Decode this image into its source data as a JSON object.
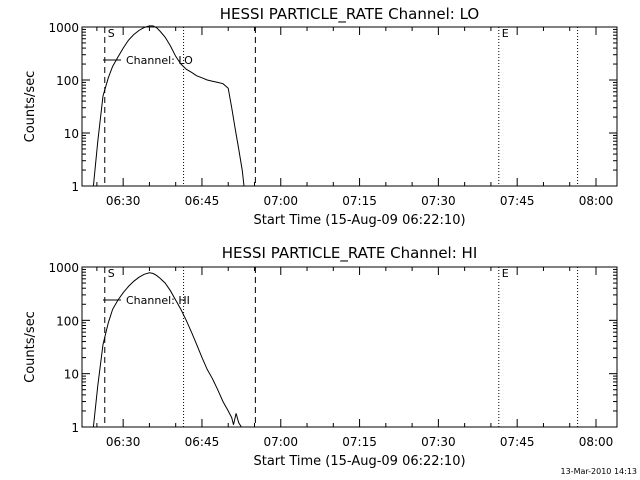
{
  "footer_timestamp": "13-Mar-2010 14:13",
  "chart_data": [
    {
      "type": "line",
      "title": "HESSI PARTICLE_RATE Channel: LO",
      "xlabel": "Start Time (15-Aug-09 06:22:10)",
      "ylabel": "Counts/sec",
      "legend": "Channel: LO",
      "y_scale": "log",
      "xlim": [
        "06:22:10",
        "08:04:00"
      ],
      "ylim": [
        1,
        1000
      ],
      "x_ticks": [
        "06:30",
        "06:45",
        "07:00",
        "07:15",
        "07:30",
        "07:45",
        "08:00"
      ],
      "y_ticks": [
        "1",
        "10",
        "100",
        "1000"
      ],
      "markers": [
        {
          "label": "S",
          "time": "06:26:30",
          "style": "dashed"
        },
        {
          "label": "",
          "time": "06:41:30",
          "style": "dotted"
        },
        {
          "label": "",
          "time": "06:55:10",
          "style": "dashed"
        },
        {
          "label": "E",
          "time": "07:41:30",
          "style": "dotted"
        },
        {
          "label": "",
          "time": "07:56:30",
          "style": "dotted"
        }
      ],
      "series": [
        {
          "x": [
            "06:24:20",
            "06:25:10",
            "06:26:10",
            "06:27:10",
            "06:28:00",
            "06:29:00",
            "06:30:00",
            "06:31:00",
            "06:32:00",
            "06:33:00",
            "06:34:00",
            "06:35:00",
            "06:35:40",
            "06:36:20",
            "06:37:00",
            "06:38:00",
            "06:39:00",
            "06:40:00",
            "06:41:00",
            "06:42:00",
            "06:43:00",
            "06:44:00",
            "06:45:00",
            "06:46:00",
            "06:47:00",
            "06:48:00",
            "06:49:00",
            "06:50:00",
            "06:50:40",
            "06:51:20",
            "06:52:00",
            "06:52:40",
            "06:53:00"
          ],
          "y": [
            1,
            7,
            50,
            110,
            180,
            270,
            400,
            560,
            720,
            860,
            980,
            1050,
            1050,
            980,
            840,
            640,
            440,
            280,
            200,
            160,
            140,
            120,
            110,
            100,
            95,
            90,
            85,
            70,
            30,
            12,
            5,
            2,
            1
          ]
        }
      ]
    },
    {
      "type": "line",
      "title": "HESSI PARTICLE_RATE Channel: HI",
      "xlabel": "Start Time (15-Aug-09 06:22:10)",
      "ylabel": "Counts/sec",
      "legend": "Channel: HI",
      "y_scale": "log",
      "xlim": [
        "06:22:10",
        "08:04:00"
      ],
      "ylim": [
        1,
        1000
      ],
      "x_ticks": [
        "06:30",
        "06:45",
        "07:00",
        "07:15",
        "07:30",
        "07:45",
        "08:00"
      ],
      "y_ticks": [
        "1",
        "10",
        "100",
        "1000"
      ],
      "markers": [
        {
          "label": "S",
          "time": "06:26:30",
          "style": "dashed"
        },
        {
          "label": "",
          "time": "06:41:30",
          "style": "dotted"
        },
        {
          "label": "",
          "time": "06:55:10",
          "style": "dashed"
        },
        {
          "label": "E",
          "time": "07:41:30",
          "style": "dotted"
        },
        {
          "label": "",
          "time": "07:56:30",
          "style": "dotted"
        }
      ],
      "series": [
        {
          "x": [
            "06:24:20",
            "06:25:10",
            "06:26:10",
            "06:27:10",
            "06:28:00",
            "06:29:00",
            "06:30:00",
            "06:31:00",
            "06:32:00",
            "06:33:00",
            "06:34:00",
            "06:35:00",
            "06:35:40",
            "06:36:20",
            "06:37:00",
            "06:38:00",
            "06:39:00",
            "06:40:00",
            "06:41:00",
            "06:42:00",
            "06:43:00",
            "06:44:00",
            "06:45:00",
            "06:46:00",
            "06:47:00",
            "06:48:00",
            "06:49:00",
            "06:50:00",
            "06:50:40",
            "06:51:00",
            "06:51:30",
            "06:52:00",
            "06:52:30"
          ],
          "y": [
            1,
            6,
            35,
            90,
            160,
            240,
            330,
            430,
            540,
            640,
            730,
            780,
            760,
            700,
            620,
            500,
            360,
            240,
            160,
            100,
            60,
            35,
            20,
            12,
            8,
            5,
            3,
            2,
            1.5,
            1.1,
            1.8,
            1.2,
            1
          ]
        }
      ]
    }
  ]
}
